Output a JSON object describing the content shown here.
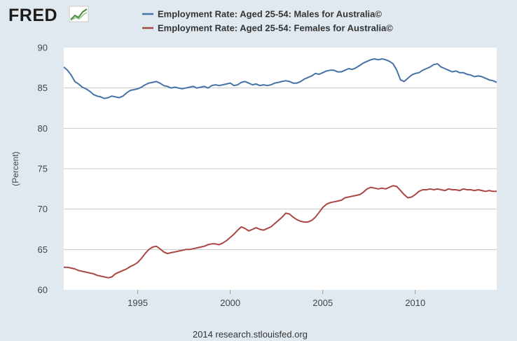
{
  "header": {
    "logo_text": "FRED",
    "logo_icon": "line-chart-icon"
  },
  "footer": {
    "credit": "2014 research.stlouisfed.org"
  },
  "chart_data": {
    "type": "line",
    "title": "",
    "xlabel": "",
    "ylabel": "(Percent)",
    "xlim": [
      1991,
      2014.4
    ],
    "ylim": [
      60,
      90
    ],
    "xticks": [
      1995,
      2000,
      2005,
      2010
    ],
    "yticks": [
      60,
      65,
      70,
      75,
      80,
      85,
      90
    ],
    "grid": true,
    "legend_position": "top",
    "series": [
      {
        "name": "Employment Rate: Aged 25-54: Males for Australia©",
        "color": "#4572a7",
        "x": [
          1991.0,
          1991.2,
          1991.4,
          1991.6,
          1991.8,
          1992.0,
          1992.2,
          1992.4,
          1992.6,
          1992.8,
          1993.0,
          1993.2,
          1993.4,
          1993.6,
          1993.8,
          1994.0,
          1994.2,
          1994.4,
          1994.6,
          1994.8,
          1995.0,
          1995.2,
          1995.4,
          1995.6,
          1995.8,
          1996.0,
          1996.2,
          1996.4,
          1996.6,
          1996.8,
          1997.0,
          1997.2,
          1997.4,
          1997.6,
          1997.8,
          1998.0,
          1998.2,
          1998.4,
          1998.6,
          1998.8,
          1999.0,
          1999.2,
          1999.4,
          1999.6,
          1999.8,
          2000.0,
          2000.2,
          2000.4,
          2000.6,
          2000.8,
          2001.0,
          2001.2,
          2001.4,
          2001.6,
          2001.8,
          2002.0,
          2002.2,
          2002.4,
          2002.6,
          2002.8,
          2003.0,
          2003.2,
          2003.4,
          2003.6,
          2003.8,
          2004.0,
          2004.2,
          2004.4,
          2004.6,
          2004.8,
          2005.0,
          2005.2,
          2005.4,
          2005.6,
          2005.8,
          2006.0,
          2006.2,
          2006.4,
          2006.6,
          2006.8,
          2007.0,
          2007.2,
          2007.4,
          2007.6,
          2007.8,
          2008.0,
          2008.2,
          2008.4,
          2008.6,
          2008.8,
          2009.0,
          2009.2,
          2009.4,
          2009.6,
          2009.8,
          2010.0,
          2010.2,
          2010.4,
          2010.6,
          2010.8,
          2011.0,
          2011.2,
          2011.4,
          2011.6,
          2011.8,
          2012.0,
          2012.2,
          2012.4,
          2012.6,
          2012.8,
          2013.0,
          2013.2,
          2013.4,
          2013.6,
          2013.8,
          2014.0,
          2014.2,
          2014.4
        ],
        "values": [
          87.6,
          87.2,
          86.6,
          85.8,
          85.5,
          85.1,
          84.9,
          84.6,
          84.2,
          84.0,
          83.9,
          83.7,
          83.8,
          84.0,
          83.9,
          83.8,
          84.0,
          84.4,
          84.7,
          84.8,
          84.9,
          85.1,
          85.4,
          85.6,
          85.7,
          85.8,
          85.6,
          85.3,
          85.2,
          85.0,
          85.1,
          85.0,
          84.9,
          85.0,
          85.1,
          85.2,
          85.0,
          85.1,
          85.2,
          85.0,
          85.3,
          85.4,
          85.3,
          85.4,
          85.5,
          85.6,
          85.3,
          85.4,
          85.7,
          85.8,
          85.6,
          85.4,
          85.5,
          85.3,
          85.4,
          85.3,
          85.4,
          85.6,
          85.7,
          85.8,
          85.9,
          85.8,
          85.6,
          85.6,
          85.8,
          86.1,
          86.3,
          86.5,
          86.8,
          86.7,
          86.9,
          87.1,
          87.2,
          87.2,
          87.0,
          87.0,
          87.2,
          87.4,
          87.3,
          87.5,
          87.8,
          88.1,
          88.3,
          88.5,
          88.6,
          88.5,
          88.6,
          88.5,
          88.3,
          88.0,
          87.2,
          86.0,
          85.8,
          86.2,
          86.6,
          86.8,
          86.9,
          87.2,
          87.4,
          87.6,
          87.9,
          88.0,
          87.6,
          87.4,
          87.2,
          87.0,
          87.1,
          86.9,
          86.9,
          86.7,
          86.6,
          86.4,
          86.5,
          86.4,
          86.2,
          86.0,
          85.9,
          85.7
        ]
      },
      {
        "name": "Employment Rate: Aged 25-54: Females for Australia©",
        "color": "#aa4643",
        "x": [
          1991.0,
          1991.2,
          1991.4,
          1991.6,
          1991.8,
          1992.0,
          1992.2,
          1992.4,
          1992.6,
          1992.8,
          1993.0,
          1993.2,
          1993.4,
          1993.6,
          1993.8,
          1994.0,
          1994.2,
          1994.4,
          1994.6,
          1994.8,
          1995.0,
          1995.2,
          1995.4,
          1995.6,
          1995.8,
          1996.0,
          1996.2,
          1996.4,
          1996.6,
          1996.8,
          1997.0,
          1997.2,
          1997.4,
          1997.6,
          1997.8,
          1998.0,
          1998.2,
          1998.4,
          1998.6,
          1998.8,
          1999.0,
          1999.2,
          1999.4,
          1999.6,
          1999.8,
          2000.0,
          2000.2,
          2000.4,
          2000.6,
          2000.8,
          2001.0,
          2001.2,
          2001.4,
          2001.6,
          2001.8,
          2002.0,
          2002.2,
          2002.4,
          2002.6,
          2002.8,
          2003.0,
          2003.2,
          2003.4,
          2003.6,
          2003.8,
          2004.0,
          2004.2,
          2004.4,
          2004.6,
          2004.8,
          2005.0,
          2005.2,
          2005.4,
          2005.6,
          2005.8,
          2006.0,
          2006.2,
          2006.4,
          2006.6,
          2006.8,
          2007.0,
          2007.2,
          2007.4,
          2007.6,
          2007.8,
          2008.0,
          2008.2,
          2008.4,
          2008.6,
          2008.8,
          2009.0,
          2009.2,
          2009.4,
          2009.6,
          2009.8,
          2010.0,
          2010.2,
          2010.4,
          2010.6,
          2010.8,
          2011.0,
          2011.2,
          2011.4,
          2011.6,
          2011.8,
          2012.0,
          2012.2,
          2012.4,
          2012.6,
          2012.8,
          2013.0,
          2013.2,
          2013.4,
          2013.6,
          2013.8,
          2014.0,
          2014.2,
          2014.4
        ],
        "values": [
          62.8,
          62.8,
          62.7,
          62.6,
          62.4,
          62.3,
          62.2,
          62.1,
          62.0,
          61.8,
          61.7,
          61.6,
          61.5,
          61.6,
          62.0,
          62.2,
          62.4,
          62.6,
          62.9,
          63.1,
          63.4,
          63.9,
          64.5,
          65.0,
          65.3,
          65.4,
          65.1,
          64.7,
          64.5,
          64.6,
          64.7,
          64.8,
          64.9,
          65.0,
          65.0,
          65.1,
          65.2,
          65.3,
          65.4,
          65.6,
          65.7,
          65.7,
          65.6,
          65.8,
          66.1,
          66.5,
          66.9,
          67.4,
          67.8,
          67.6,
          67.3,
          67.5,
          67.7,
          67.5,
          67.4,
          67.6,
          67.8,
          68.2,
          68.6,
          69.0,
          69.5,
          69.4,
          69.0,
          68.7,
          68.5,
          68.4,
          68.4,
          68.6,
          69.0,
          69.6,
          70.2,
          70.6,
          70.8,
          70.9,
          71.0,
          71.1,
          71.4,
          71.5,
          71.6,
          71.7,
          71.8,
          72.1,
          72.5,
          72.7,
          72.6,
          72.5,
          72.6,
          72.5,
          72.7,
          72.9,
          72.8,
          72.3,
          71.8,
          71.4,
          71.5,
          71.8,
          72.2,
          72.4,
          72.4,
          72.5,
          72.4,
          72.5,
          72.4,
          72.3,
          72.5,
          72.4,
          72.4,
          72.3,
          72.5,
          72.4,
          72.4,
          72.3,
          72.4,
          72.3,
          72.2,
          72.3,
          72.2,
          72.2
        ]
      }
    ]
  }
}
